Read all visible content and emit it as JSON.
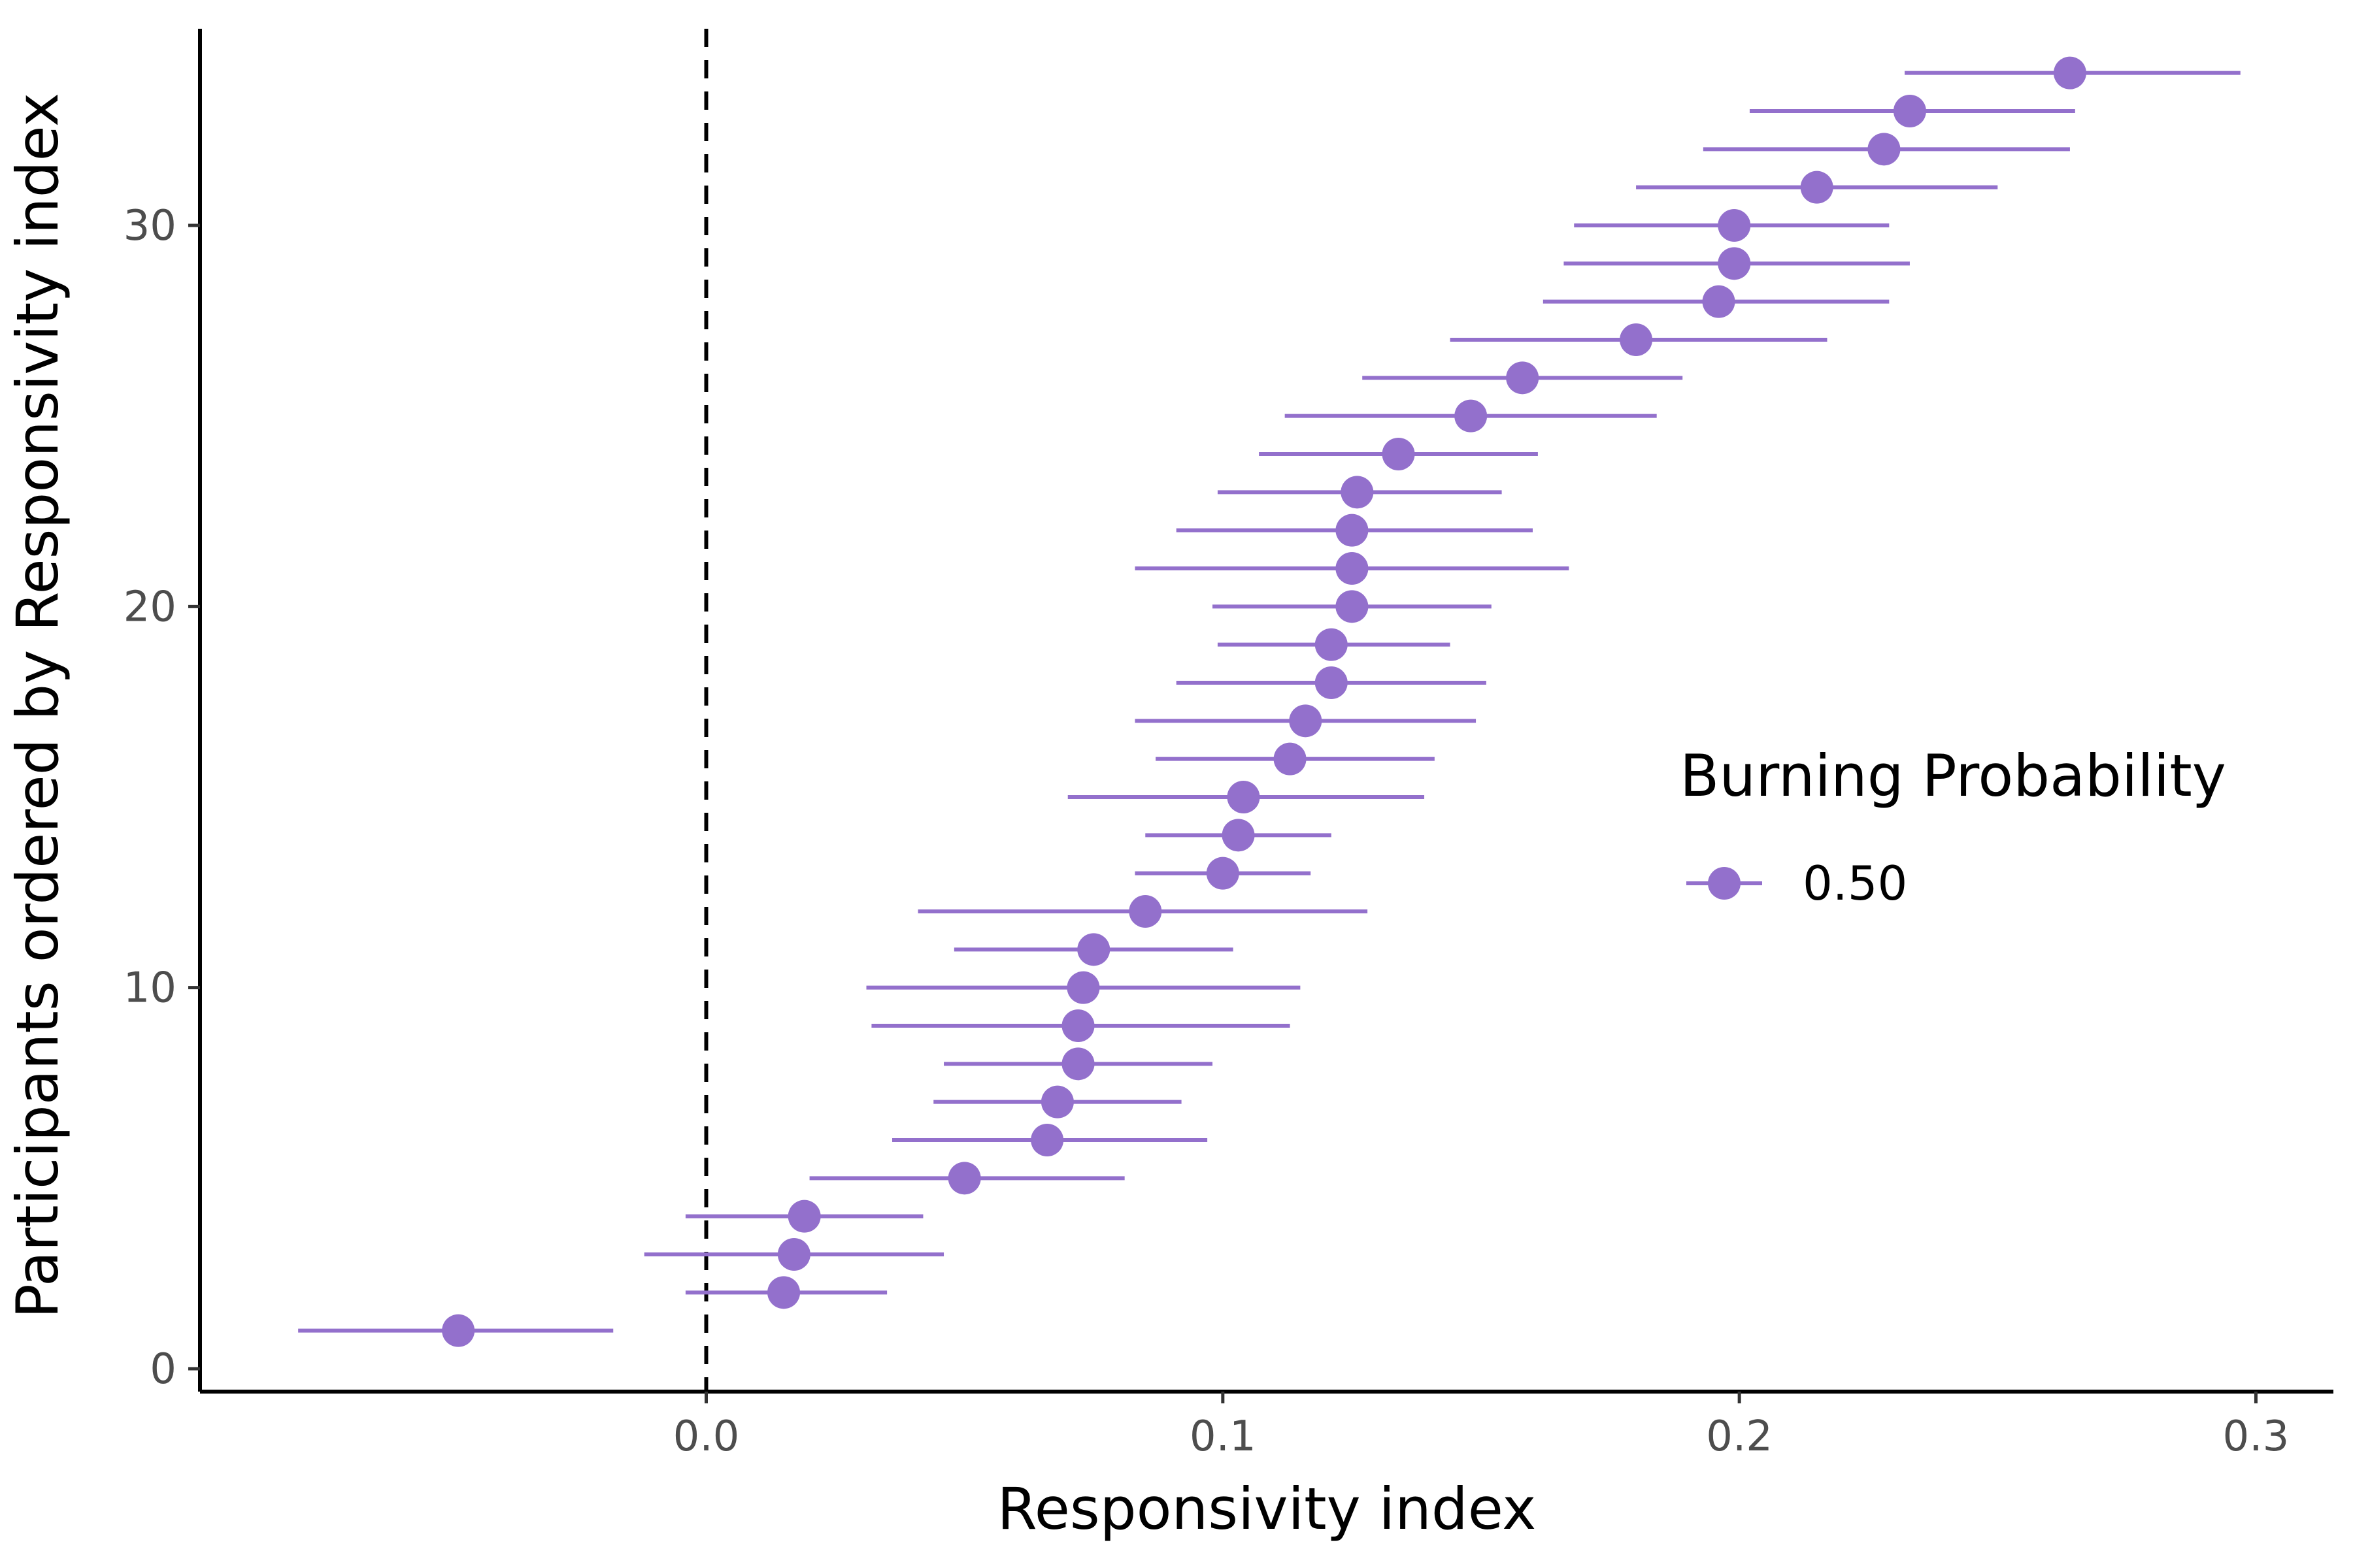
{
  "chart_data": {
    "type": "scatter",
    "subtype": "forest-plot",
    "title": "",
    "xlabel": "Responsivity index",
    "ylabel": "Participants ordered by Responsivity index",
    "xlim": [
      -0.098,
      0.315
    ],
    "ylim": [
      -0.6,
      35.4
    ],
    "x_ticks": [
      0.0,
      0.1,
      0.2,
      0.3
    ],
    "x_tick_labels": [
      "0.0",
      "0.1",
      "0.2",
      "0.3"
    ],
    "y_ticks": [
      0,
      10,
      20,
      30
    ],
    "y_tick_labels": [
      "0",
      "10",
      "20",
      "30"
    ],
    "reference_line": {
      "x": 0.0,
      "style": "dashed",
      "color": "#000000"
    },
    "grid": false,
    "legend": {
      "title": "Burning Probability",
      "placement": "right"
    },
    "series": [
      {
        "name": "0.50",
        "color": "#9370cc",
        "points": [
          {
            "y": 1,
            "x": -0.048,
            "lo": -0.079,
            "hi": -0.018
          },
          {
            "y": 2,
            "x": 0.015,
            "lo": -0.004,
            "hi": 0.035
          },
          {
            "y": 3,
            "x": 0.017,
            "lo": -0.012,
            "hi": 0.046
          },
          {
            "y": 4,
            "x": 0.019,
            "lo": -0.004,
            "hi": 0.042
          },
          {
            "y": 5,
            "x": 0.05,
            "lo": 0.02,
            "hi": 0.081
          },
          {
            "y": 6,
            "x": 0.066,
            "lo": 0.036,
            "hi": 0.097
          },
          {
            "y": 7,
            "x": 0.068,
            "lo": 0.044,
            "hi": 0.092
          },
          {
            "y": 8,
            "x": 0.072,
            "lo": 0.046,
            "hi": 0.098
          },
          {
            "y": 9,
            "x": 0.072,
            "lo": 0.032,
            "hi": 0.113
          },
          {
            "y": 10,
            "x": 0.073,
            "lo": 0.031,
            "hi": 0.115
          },
          {
            "y": 11,
            "x": 0.075,
            "lo": 0.048,
            "hi": 0.102
          },
          {
            "y": 12,
            "x": 0.085,
            "lo": 0.041,
            "hi": 0.128
          },
          {
            "y": 13,
            "x": 0.1,
            "lo": 0.083,
            "hi": 0.117
          },
          {
            "y": 14,
            "x": 0.103,
            "lo": 0.085,
            "hi": 0.121
          },
          {
            "y": 15,
            "x": 0.104,
            "lo": 0.07,
            "hi": 0.139
          },
          {
            "y": 16,
            "x": 0.113,
            "lo": 0.087,
            "hi": 0.141
          },
          {
            "y": 17,
            "x": 0.116,
            "lo": 0.083,
            "hi": 0.149
          },
          {
            "y": 18,
            "x": 0.121,
            "lo": 0.091,
            "hi": 0.151
          },
          {
            "y": 19,
            "x": 0.121,
            "lo": 0.099,
            "hi": 0.144
          },
          {
            "y": 20,
            "x": 0.125,
            "lo": 0.098,
            "hi": 0.152
          },
          {
            "y": 21,
            "x": 0.125,
            "lo": 0.083,
            "hi": 0.167
          },
          {
            "y": 22,
            "x": 0.125,
            "lo": 0.091,
            "hi": 0.16
          },
          {
            "y": 23,
            "x": 0.126,
            "lo": 0.099,
            "hi": 0.154
          },
          {
            "y": 24,
            "x": 0.134,
            "lo": 0.107,
            "hi": 0.161
          },
          {
            "y": 25,
            "x": 0.148,
            "lo": 0.112,
            "hi": 0.184
          },
          {
            "y": 26,
            "x": 0.158,
            "lo": 0.127,
            "hi": 0.189
          },
          {
            "y": 27,
            "x": 0.18,
            "lo": 0.144,
            "hi": 0.217
          },
          {
            "y": 28,
            "x": 0.196,
            "lo": 0.162,
            "hi": 0.229
          },
          {
            "y": 29,
            "x": 0.199,
            "lo": 0.166,
            "hi": 0.233
          },
          {
            "y": 30,
            "x": 0.199,
            "lo": 0.168,
            "hi": 0.229
          },
          {
            "y": 31,
            "x": 0.215,
            "lo": 0.18,
            "hi": 0.25
          },
          {
            "y": 32,
            "x": 0.228,
            "lo": 0.193,
            "hi": 0.264
          },
          {
            "y": 33,
            "x": 0.233,
            "lo": 0.202,
            "hi": 0.265
          },
          {
            "y": 34,
            "x": 0.264,
            "lo": 0.232,
            "hi": 0.297
          }
        ]
      }
    ]
  }
}
